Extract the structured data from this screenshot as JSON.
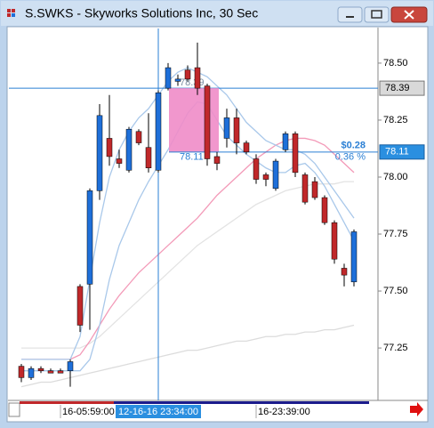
{
  "chart_data": {
    "type": "candlestick",
    "title": "S.SWKS - Skyworks Solutions Inc, 30 Sec",
    "categories": [
      null,
      null,
      null,
      null,
      "16-05:59:00",
      null,
      null,
      null,
      null,
      null,
      null,
      null,
      null,
      null,
      "12-16-16 23:34:00",
      null,
      null,
      null,
      null,
      null,
      null,
      null,
      null,
      null,
      "16-23:39:00",
      null,
      null,
      null,
      null,
      null,
      null,
      null,
      null,
      null,
      null
    ],
    "open": [
      77.17,
      77.12,
      77.16,
      77.15,
      77.15,
      77.15,
      77.52,
      77.53,
      77.94,
      78.17,
      78.08,
      78.03,
      78.2,
      78.13,
      78.03,
      78.39,
      78.42,
      78.47,
      78.48,
      78.4,
      78.09,
      78.17,
      78.26,
      78.15,
      78.08,
      78.01,
      77.95,
      78.12,
      78.19,
      78.01,
      77.98,
      77.91,
      77.8,
      77.6,
      77.54
    ],
    "high": [
      77.18,
      77.17,
      77.17,
      77.16,
      77.16,
      77.2,
      77.53,
      77.95,
      78.32,
      78.36,
      78.12,
      78.22,
      78.21,
      78.28,
      78.38,
      78.5,
      78.45,
      78.49,
      78.59,
      78.41,
      78.11,
      78.3,
      78.3,
      78.16,
      78.1,
      78.02,
      78.08,
      78.2,
      78.2,
      78.02,
      78.0,
      77.92,
      77.81,
      77.62,
      77.77
    ],
    "low": [
      77.1,
      77.11,
      77.14,
      77.14,
      77.14,
      77.08,
      77.32,
      77.33,
      77.9,
      78.05,
      78.04,
      78.02,
      78.14,
      78.02,
      78.02,
      78.38,
      78.4,
      78.42,
      78.36,
      78.05,
      78.03,
      78.13,
      78.1,
      78.1,
      77.97,
      77.96,
      77.94,
      78.11,
      78.0,
      77.88,
      77.9,
      77.79,
      77.62,
      77.52,
      77.52
    ],
    "close": [
      77.12,
      77.16,
      77.15,
      77.14,
      77.14,
      77.19,
      77.35,
      77.94,
      78.27,
      78.09,
      78.06,
      78.21,
      78.15,
      78.04,
      78.37,
      78.48,
      78.43,
      78.43,
      78.39,
      78.08,
      78.06,
      78.26,
      78.15,
      78.11,
      77.99,
      77.99,
      78.07,
      78.19,
      78.02,
      77.89,
      77.91,
      77.8,
      77.64,
      77.57,
      77.76
    ],
    "up_color": "#1e6fd9",
    "down_color": "#c0282a",
    "overlays": [
      {
        "color": "#e3e3e3",
        "values": [
          77.25,
          77.25,
          77.25,
          77.25,
          77.25,
          77.25,
          77.25,
          77.27,
          77.3,
          77.34,
          77.38,
          77.42,
          77.46,
          77.5,
          77.54,
          77.58,
          77.62,
          77.66,
          77.7,
          77.73,
          77.76,
          77.79,
          77.82,
          77.85,
          77.88,
          77.9,
          77.92,
          77.94,
          77.95,
          77.96,
          77.97,
          77.97,
          77.97,
          77.98,
          77.98
        ]
      },
      {
        "color": "#dcdcdc",
        "values": [
          77.08,
          77.09,
          77.1,
          77.1,
          77.11,
          77.12,
          77.13,
          77.14,
          77.15,
          77.16,
          77.17,
          77.18,
          77.19,
          77.2,
          77.21,
          77.22,
          77.23,
          77.24,
          77.24,
          77.25,
          77.26,
          77.27,
          77.28,
          77.28,
          77.29,
          77.3,
          77.3,
          77.31,
          77.31,
          77.32,
          77.32,
          77.33,
          77.33,
          77.34,
          77.35
        ]
      },
      {
        "color": "#f39ab8",
        "values": [
          77.2,
          77.2,
          77.2,
          77.2,
          77.2,
          77.2,
          77.22,
          77.28,
          77.35,
          77.42,
          77.48,
          77.53,
          77.58,
          77.62,
          77.66,
          77.7,
          77.74,
          77.78,
          77.82,
          77.87,
          77.92,
          77.96,
          78.0,
          78.04,
          78.08,
          78.11,
          78.14,
          78.16,
          78.17,
          78.17,
          78.16,
          78.14,
          78.1,
          78.06,
          78.02
        ]
      },
      {
        "color": "#a9c8ea",
        "values": [
          77.2,
          77.2,
          77.2,
          77.2,
          77.2,
          77.2,
          77.3,
          77.55,
          77.8,
          78.0,
          78.12,
          78.2,
          78.26,
          78.3,
          78.36,
          78.42,
          78.46,
          78.48,
          78.46,
          78.44,
          78.4,
          78.36,
          78.3,
          78.24,
          78.2,
          78.16,
          78.14,
          78.12,
          78.12,
          78.1,
          78.06,
          78.0,
          77.94,
          77.88,
          77.82
        ]
      },
      {
        "color": "#a9c8ea",
        "values": [
          77.15,
          77.15,
          77.15,
          77.15,
          77.15,
          77.15,
          77.15,
          77.2,
          77.35,
          77.55,
          77.7,
          77.8,
          77.9,
          77.98,
          78.05,
          78.12,
          78.2,
          78.28,
          78.33,
          78.32,
          78.25,
          78.18,
          78.14,
          78.1,
          78.07,
          78.04,
          78.02,
          78.02,
          78.05,
          78.06,
          78.02,
          77.96,
          77.88,
          77.8,
          77.72
        ]
      }
    ],
    "ylim": [
      77.02,
      78.652
    ],
    "yticks": [
      {
        "value": 78.5,
        "label": "78.50"
      },
      78.25,
      {
        "value": 78,
        "label": "78.00"
      },
      77.75,
      {
        "value": 77.5,
        "label": "77.50"
      },
      77.25
    ],
    "crosshair_category": "12-16-16 23:34:00",
    "crosshair_price": 78.39,
    "crosshair_color": "#2a7fd4",
    "price_line": 78.11,
    "price_line_color": "#2a7fd4",
    "measure": {
      "start_price": 78.39,
      "end_price": 78.11,
      "change": "$0.28",
      "change_pct": "0.36 %",
      "color": "#f08cc8"
    }
  }
}
